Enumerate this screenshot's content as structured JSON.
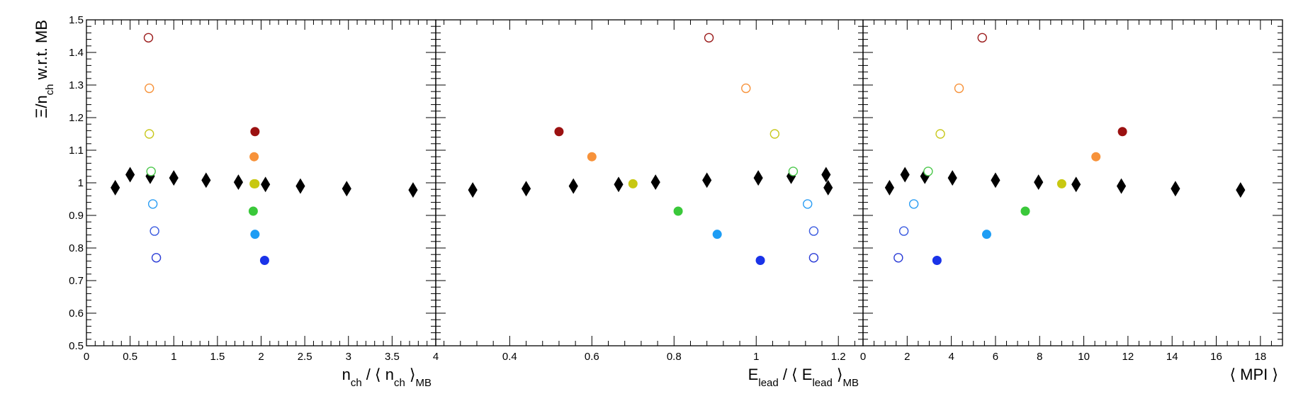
{
  "chart_data": [
    {
      "type": "scatter",
      "panel": "left",
      "xlabel": {
        "main": "n",
        "sub": "ch",
        "mid": " / ⟨ n",
        "sub2": "ch",
        "tail": " ⟩",
        "sub3": "MB"
      },
      "ylabel": {
        "main": "Ξ/n",
        "sub": "ch",
        "tail": " w.r.t. MB"
      },
      "xlim": [
        0,
        4
      ],
      "ylim": [
        0.5,
        1.5
      ],
      "x_ticks": [
        "0",
        "0.5",
        "1",
        "1.5",
        "2",
        "2.5",
        "3",
        "3.5",
        "4"
      ],
      "x_tick_values": [
        0,
        0.5,
        1,
        1.5,
        2,
        2.5,
        3,
        3.5,
        4
      ],
      "y_ticks": [
        "0.5",
        "0.6",
        "0.7",
        "0.8",
        "0.9",
        "1",
        "1.1",
        "1.2",
        "1.3",
        "1.4",
        "1.5"
      ],
      "y_tick_values": [
        0.5,
        0.6,
        0.7,
        0.8,
        0.9,
        1.0,
        1.1,
        1.2,
        1.3,
        1.4,
        1.5
      ],
      "grid": false,
      "series": [
        {
          "marker": "diamond",
          "color": "#000000",
          "fill": true,
          "x": [
            0.33,
            0.5,
            0.73,
            1.0,
            1.37,
            1.74,
            2.05,
            2.45,
            2.98,
            3.74
          ],
          "y": [
            0.985,
            1.025,
            1.02,
            1.015,
            1.008,
            1.002,
            0.995,
            0.99,
            0.982,
            0.978
          ]
        },
        {
          "marker": "circle-open",
          "x": [
            0.71,
            0.72,
            0.72,
            0.74,
            0.76,
            0.78,
            0.8
          ],
          "y": [
            1.445,
            1.29,
            1.15,
            1.035,
            0.935,
            0.852,
            0.77
          ],
          "colors": [
            "#9b1b1b",
            "#f7923a",
            "#c8c81e",
            "#4cc84c",
            "#2a9df4",
            "#3b5be0",
            "#2a3bd6"
          ]
        },
        {
          "marker": "circle-filled",
          "x": [
            1.93,
            1.92,
            1.92,
            1.91,
            1.93,
            2.04,
            1.93
          ],
          "y": [
            1.157,
            1.08,
            0.997,
            0.913,
            0.842,
            0.762,
            0.997
          ],
          "colors": [
            "#9b1111",
            "#f7923a",
            "#c8c811",
            "#3ac83a",
            "#1e9df4",
            "#1a33e8",
            "#c8c811"
          ]
        }
      ]
    },
    {
      "type": "scatter",
      "panel": "middle",
      "xlabel": {
        "main": "E",
        "sub": "lead",
        "mid": " / ⟨ E",
        "sub2": "lead",
        "tail": " ⟩",
        "sub3": "MB"
      },
      "xlim": [
        0.22,
        1.26
      ],
      "ylim": [
        0.5,
        1.5
      ],
      "x_ticks": [
        "0.4",
        "0.6",
        "0.8",
        "1",
        "1.2"
      ],
      "x_tick_values": [
        0.4,
        0.6,
        0.8,
        1.0,
        1.2
      ],
      "grid": false,
      "series": [
        {
          "marker": "diamond",
          "color": "#000000",
          "fill": true,
          "x": [
            0.31,
            0.44,
            0.555,
            0.665,
            0.755,
            0.88,
            1.005,
            1.085,
            1.17,
            1.175
          ],
          "y": [
            0.978,
            0.982,
            0.99,
            0.995,
            1.002,
            1.008,
            1.015,
            1.02,
            1.025,
            0.985
          ]
        },
        {
          "marker": "circle-open",
          "x": [
            0.885,
            0.975,
            1.045,
            1.09,
            1.125,
            1.14,
            1.14
          ],
          "y": [
            1.445,
            1.29,
            1.15,
            1.035,
            0.935,
            0.852,
            0.77
          ],
          "colors": [
            "#9b1b1b",
            "#f7923a",
            "#c8c81e",
            "#4cc84c",
            "#2a9df4",
            "#3b5be0",
            "#2a3bd6"
          ]
        },
        {
          "marker": "circle-filled",
          "x": [
            0.52,
            0.6,
            0.7,
            0.81,
            0.905,
            1.01
          ],
          "y": [
            1.157,
            1.08,
            0.997,
            0.913,
            0.842,
            0.762
          ],
          "colors": [
            "#9b1111",
            "#f7923a",
            "#c8c811",
            "#3ac83a",
            "#1e9df4",
            "#1a33e8"
          ]
        }
      ]
    },
    {
      "type": "scatter",
      "panel": "right",
      "xlabel": {
        "main": "⟨ MPI ⟩"
      },
      "xlim": [
        0,
        19
      ],
      "ylim": [
        0.5,
        1.5
      ],
      "x_ticks": [
        "0",
        "2",
        "4",
        "6",
        "8",
        "10",
        "12",
        "14",
        "16",
        "18"
      ],
      "x_tick_values": [
        0,
        2,
        4,
        6,
        8,
        10,
        12,
        14,
        16,
        18
      ],
      "grid": false,
      "series": [
        {
          "marker": "diamond",
          "color": "#000000",
          "fill": true,
          "x": [
            1.2,
            1.9,
            2.8,
            4.05,
            6.0,
            7.95,
            9.65,
            11.7,
            14.15,
            17.1
          ],
          "y": [
            0.985,
            1.025,
            1.02,
            1.015,
            1.008,
            1.002,
            0.995,
            0.99,
            0.982,
            0.978
          ]
        },
        {
          "marker": "circle-open",
          "x": [
            5.4,
            4.35,
            3.5,
            2.95,
            2.3,
            1.85,
            1.6
          ],
          "y": [
            1.445,
            1.29,
            1.15,
            1.035,
            0.935,
            0.852,
            0.77
          ],
          "colors": [
            "#9b1b1b",
            "#f7923a",
            "#c8c81e",
            "#4cc84c",
            "#2a9df4",
            "#3b5be0",
            "#2a3bd6"
          ]
        },
        {
          "marker": "circle-filled",
          "x": [
            11.75,
            10.55,
            9.0,
            7.35,
            5.6,
            3.35
          ],
          "y": [
            1.157,
            1.08,
            0.997,
            0.913,
            0.842,
            0.762
          ],
          "colors": [
            "#9b1111",
            "#f7923a",
            "#c8c811",
            "#3ac83a",
            "#1e9df4",
            "#1a33e8"
          ]
        }
      ]
    }
  ]
}
